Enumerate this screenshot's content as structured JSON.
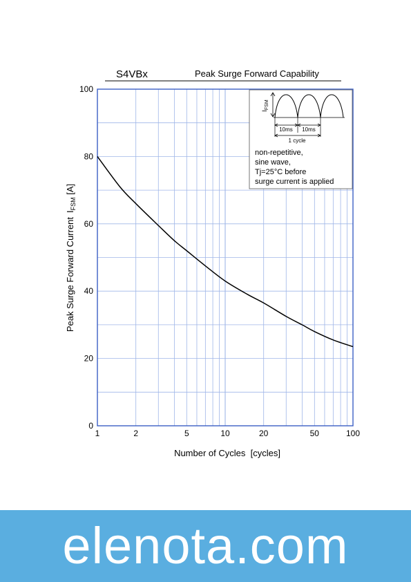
{
  "chart_data": {
    "type": "line",
    "part_number": "S4VBx",
    "title": "Peak Surge Forward Capability",
    "xlabel": "Number of Cycles  [cycles]",
    "ylabel": "Peak Surge Forward Current  IFSM [A]",
    "ylabel_main": "Peak Surge Forward Current",
    "ylabel_symbol": "I",
    "ylabel_subscript": "FSM",
    "ylabel_unit": " [A]",
    "x_scale": "log",
    "xlim": [
      1,
      100
    ],
    "ylim": [
      0,
      100
    ],
    "x_ticks": [
      1,
      2,
      5,
      10,
      20,
      50,
      100
    ],
    "x_tick_labels": [
      "1",
      "2",
      "5",
      "10",
      "20",
      "50",
      "100"
    ],
    "y_ticks": [
      0,
      20,
      40,
      60,
      80,
      100
    ],
    "y_tick_labels": [
      "0",
      "20",
      "40",
      "60",
      "80",
      "100"
    ],
    "grid": true,
    "series": [
      {
        "x": [
          1,
          1.5,
          2,
          3,
          4,
          5,
          7,
          10,
          15,
          20,
          30,
          40,
          50,
          70,
          100
        ],
        "y": [
          80,
          71,
          66,
          59.5,
          55,
          52,
          47.5,
          43,
          39,
          36.5,
          32.5,
          30,
          28,
          25.5,
          23.5
        ]
      }
    ],
    "inset": {
      "symbol": "I",
      "subscript": "FSM",
      "label_10ms_a": "10ms",
      "label_10ms_b": "10ms",
      "label_cycle": "1 cycle",
      "notes": [
        "non-repetitive,",
        "sine wave,",
        "Tj=25°C before",
        "surge current is applied"
      ]
    }
  },
  "watermark": "elenota.com",
  "colors": {
    "axis": "#3b5fc4",
    "grid": "#9fb6e8",
    "curve": "#000000",
    "banner": "#5aaee0"
  }
}
